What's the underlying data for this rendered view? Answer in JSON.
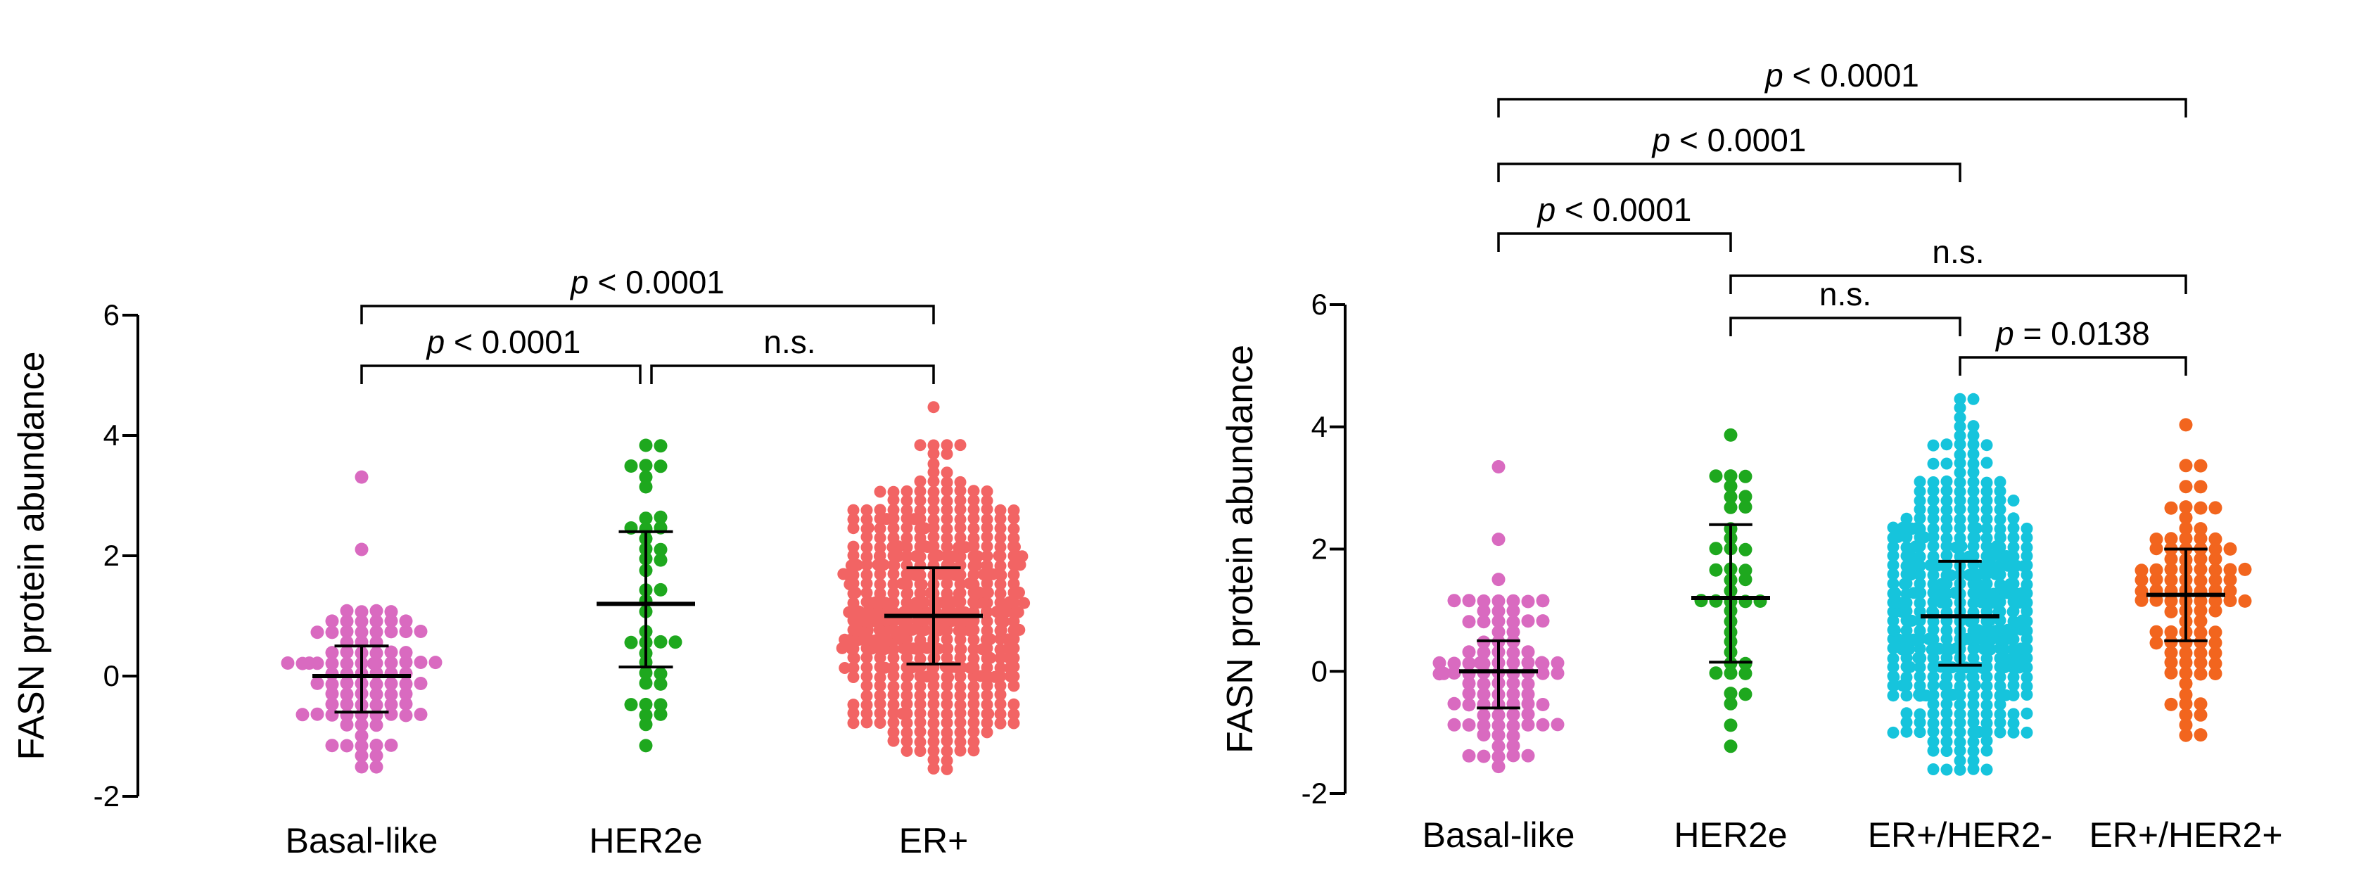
{
  "colors": {
    "basal": "#D96AC0",
    "her2e": "#1EA81E",
    "erpos": "#F26464",
    "erpos_her2neg": "#16C4DC",
    "erpos_her2pos": "#F2651E",
    "axis": "#000000"
  },
  "chart_data": [
    {
      "type": "scatter",
      "subtype": "beeswarm-dot-plot",
      "panel": "left",
      "ylabel": "FASN protein abundance",
      "xlabel": "",
      "ylim": [
        -2,
        6
      ],
      "yticks": [
        "-2",
        "0",
        "2",
        "4",
        "6"
      ],
      "categories": [
        "Basal-like",
        "HER2e",
        "ER+"
      ],
      "series": [
        {
          "name": "Basal-like",
          "color": "#D96AC0",
          "n": 90,
          "median": 0.0,
          "q1": -0.6,
          "q3": 0.5,
          "min": -1.5,
          "max": 3.4,
          "spread": 0.9
        },
        {
          "name": "HER2e",
          "color": "#1EA81E",
          "n": 40,
          "median": 1.2,
          "q1": 0.15,
          "q3": 2.4,
          "min": -1.2,
          "max": 3.85,
          "spread": 0.7
        },
        {
          "name": "ER+",
          "color": "#F26464",
          "n": 560,
          "median": 1.0,
          "q1": 0.2,
          "q3": 1.8,
          "min": -1.5,
          "max": 4.45,
          "spread": 1.0
        }
      ],
      "comparisons": [
        {
          "from": 0,
          "to": 1,
          "text_prefix": "p",
          "text": " < 0.0001",
          "level": 1
        },
        {
          "from": 1,
          "to": 2,
          "text_prefix": "",
          "text": "n.s.",
          "level": 1
        },
        {
          "from": 0,
          "to": 2,
          "text_prefix": "p",
          "text": " < 0.0001",
          "level": 2
        }
      ]
    },
    {
      "type": "scatter",
      "subtype": "beeswarm-dot-plot",
      "panel": "right",
      "ylabel": "FASN protein abundance",
      "xlabel": "",
      "ylim": [
        -2,
        6
      ],
      "yticks": [
        "-2",
        "0",
        "2",
        "4",
        "6"
      ],
      "categories": [
        "Basal-like",
        "HER2e",
        "ER+/HER2-",
        "ER+/HER2+"
      ],
      "series": [
        {
          "name": "Basal-like",
          "color": "#D96AC0",
          "n": 90,
          "median": 0.0,
          "q1": -0.6,
          "q3": 0.5,
          "min": -1.5,
          "max": 3.4,
          "spread": 0.85
        },
        {
          "name": "HER2e",
          "color": "#1EA81E",
          "n": 40,
          "median": 1.2,
          "q1": 0.15,
          "q3": 2.4,
          "min": -1.2,
          "max": 3.85,
          "spread": 0.7
        },
        {
          "name": "ER+/HER2-",
          "color": "#16C4DC",
          "n": 470,
          "median": 0.9,
          "q1": 0.1,
          "q3": 1.8,
          "min": -1.6,
          "max": 4.45,
          "spread": 0.95
        },
        {
          "name": "ER+/HER2+",
          "color": "#F2651E",
          "n": 95,
          "median": 1.25,
          "q1": 0.5,
          "q3": 2.0,
          "min": -1.05,
          "max": 4.0,
          "spread": 0.9
        }
      ],
      "comparisons": [
        {
          "from": 2,
          "to": 3,
          "text_prefix": "p",
          "text": " = 0.0138",
          "level": 1
        },
        {
          "from": 1,
          "to": 2,
          "text_prefix": "",
          "text": "n.s.",
          "level": 2
        },
        {
          "from": 1,
          "to": 3,
          "text_prefix": "",
          "text": "n.s.",
          "level": 3
        },
        {
          "from": 0,
          "to": 1,
          "text_prefix": "p",
          "text": " < 0.0001",
          "level": 4
        },
        {
          "from": 0,
          "to": 2,
          "text_prefix": "p",
          "text": " < 0.0001",
          "level": 5
        },
        {
          "from": 0,
          "to": 3,
          "text_prefix": "p",
          "text": " < 0.0001",
          "level": 6
        }
      ]
    }
  ]
}
